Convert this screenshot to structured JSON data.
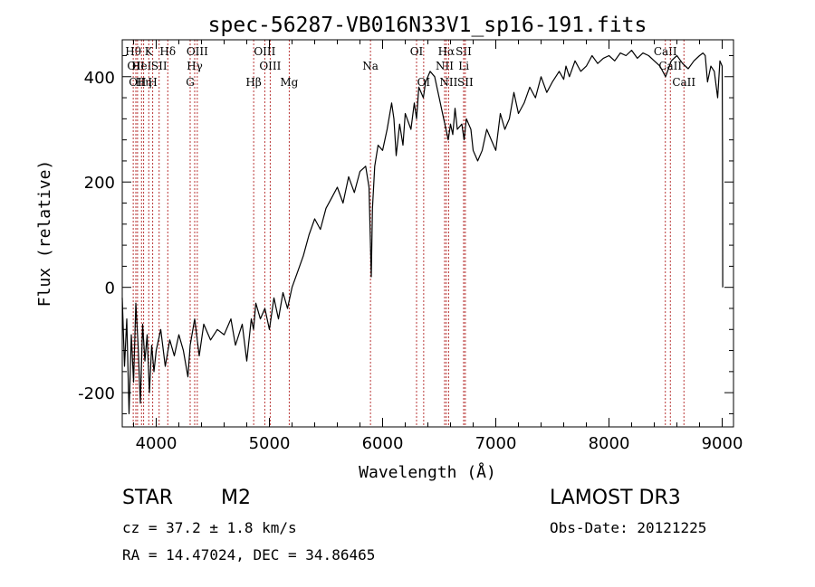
{
  "chart_data": {
    "type": "line",
    "title": "spec-56287-VB016N33V1_sp16-191.fits",
    "xlabel": "Wavelength (Å)",
    "ylabel": "Flux (relative)",
    "xlim": [
      3700,
      9100
    ],
    "ylim": [
      -265,
      470
    ],
    "xticks": [
      4000,
      5000,
      6000,
      7000,
      8000,
      9000
    ],
    "yticks": [
      -200,
      0,
      200,
      400
    ],
    "x_minor_step": 200,
    "y_minor_step": 40,
    "series": [
      {
        "name": "flux",
        "x": [
          3700,
          3720,
          3740,
          3760,
          3780,
          3800,
          3820,
          3840,
          3860,
          3880,
          3900,
          3920,
          3940,
          3960,
          3980,
          4000,
          4040,
          4080,
          4120,
          4160,
          4200,
          4240,
          4280,
          4300,
          4340,
          4380,
          4420,
          4480,
          4540,
          4600,
          4660,
          4700,
          4760,
          4800,
          4840,
          4860,
          4880,
          4920,
          4960,
          5000,
          5040,
          5080,
          5120,
          5160,
          5200,
          5250,
          5300,
          5350,
          5400,
          5450,
          5500,
          5550,
          5600,
          5650,
          5700,
          5750,
          5800,
          5850,
          5880,
          5900,
          5910,
          5930,
          5960,
          6000,
          6040,
          6080,
          6100,
          6120,
          6150,
          6180,
          6200,
          6250,
          6280,
          6300,
          6320,
          6360,
          6380,
          6420,
          6460,
          6500,
          6530,
          6560,
          6580,
          6600,
          6620,
          6640,
          6660,
          6700,
          6720,
          6740,
          6780,
          6800,
          6840,
          6880,
          6920,
          6960,
          7000,
          7040,
          7080,
          7120,
          7160,
          7200,
          7250,
          7300,
          7350,
          7400,
          7450,
          7500,
          7560,
          7600,
          7620,
          7650,
          7700,
          7750,
          7800,
          7850,
          7900,
          7950,
          8000,
          8050,
          8100,
          8150,
          8200,
          8250,
          8300,
          8350,
          8400,
          8450,
          8500,
          8550,
          8600,
          8650,
          8700,
          8750,
          8800,
          8830,
          8850,
          8870,
          8900,
          8930,
          8960,
          8980,
          9000,
          9003,
          9005
        ],
        "y": [
          -20,
          -150,
          -60,
          -240,
          -90,
          -180,
          -30,
          -110,
          -220,
          -70,
          -140,
          -90,
          -200,
          -110,
          -160,
          -120,
          -80,
          -150,
          -100,
          -130,
          -90,
          -120,
          -170,
          -110,
          -60,
          -130,
          -70,
          -100,
          -80,
          -90,
          -60,
          -110,
          -70,
          -140,
          -60,
          -80,
          -30,
          -60,
          -40,
          -80,
          -20,
          -60,
          -10,
          -40,
          0,
          30,
          60,
          100,
          130,
          110,
          150,
          170,
          190,
          160,
          210,
          180,
          220,
          230,
          190,
          20,
          150,
          230,
          270,
          260,
          300,
          350,
          320,
          250,
          310,
          270,
          330,
          300,
          350,
          320,
          380,
          360,
          390,
          410,
          400,
          360,
          330,
          300,
          280,
          310,
          290,
          340,
          300,
          310,
          280,
          320,
          300,
          260,
          240,
          260,
          300,
          280,
          260,
          330,
          300,
          320,
          370,
          330,
          350,
          380,
          360,
          400,
          370,
          390,
          410,
          395,
          420,
          400,
          430,
          410,
          420,
          440,
          425,
          435,
          440,
          430,
          445,
          440,
          450,
          435,
          445,
          440,
          430,
          420,
          400,
          430,
          440,
          425,
          415,
          430,
          440,
          445,
          440,
          390,
          420,
          410,
          360,
          430,
          420,
          240,
          0
        ]
      }
    ],
    "line_markers": [
      {
        "wave": 3797,
        "label": "Hθ",
        "row": 1
      },
      {
        "wave": 3820,
        "label": "OII",
        "row": 2
      },
      {
        "wave": 3835,
        "label": "OII",
        "row": 3
      },
      {
        "wave": 3870,
        "label": "HeI",
        "row": 2
      },
      {
        "wave": 3889,
        "label": "Hη",
        "row": 3
      },
      {
        "wave": 3934,
        "label": "K",
        "row": 1
      },
      {
        "wave": 3969,
        "label": "H",
        "row": 3
      },
      {
        "wave": 4026,
        "label": "SII",
        "row": 2
      },
      {
        "wave": 4102,
        "label": "Hδ",
        "row": 1
      },
      {
        "wave": 4300,
        "label": "G",
        "row": 3
      },
      {
        "wave": 4340,
        "label": "Hγ",
        "row": 2
      },
      {
        "wave": 4363,
        "label": "OIII",
        "row": 1
      },
      {
        "wave": 4861,
        "label": "Hβ",
        "row": 3
      },
      {
        "wave": 4959,
        "label": "OIII",
        "row": 1
      },
      {
        "wave": 5007,
        "label": "OIII",
        "row": 2
      },
      {
        "wave": 5175,
        "label": "Mg",
        "row": 3
      },
      {
        "wave": 5893,
        "label": "Na",
        "row": 2
      },
      {
        "wave": 6300,
        "label": "OI",
        "row": 1
      },
      {
        "wave": 6363,
        "label": "OI",
        "row": 3
      },
      {
        "wave": 6548,
        "label": "NII",
        "row": 2
      },
      {
        "wave": 6563,
        "label": "Hα",
        "row": 1
      },
      {
        "wave": 6583,
        "label": "NII",
        "row": 3
      },
      {
        "wave": 6716,
        "label": "SII",
        "row": 1
      },
      {
        "wave": 6717,
        "label": "Li",
        "row": 2
      },
      {
        "wave": 6731,
        "label": "SII",
        "row": 3
      },
      {
        "wave": 8498,
        "label": "CaII",
        "row": 1
      },
      {
        "wave": 8542,
        "label": "CaII",
        "row": 2
      },
      {
        "wave": 8662,
        "label": "CaII",
        "row": 3
      }
    ]
  },
  "caption": {
    "object_class": "STAR",
    "subclass": "M2",
    "survey": "LAMOST DR3",
    "cz": "cz = 37.2 ± 1.8 km/s",
    "obs_date": "Obs-Date: 20121225",
    "radec": "RA =  14.47024, DEC =  34.86465"
  },
  "colors": {
    "line": "#000000",
    "marker": "#b22222",
    "background": "#ffffff"
  }
}
